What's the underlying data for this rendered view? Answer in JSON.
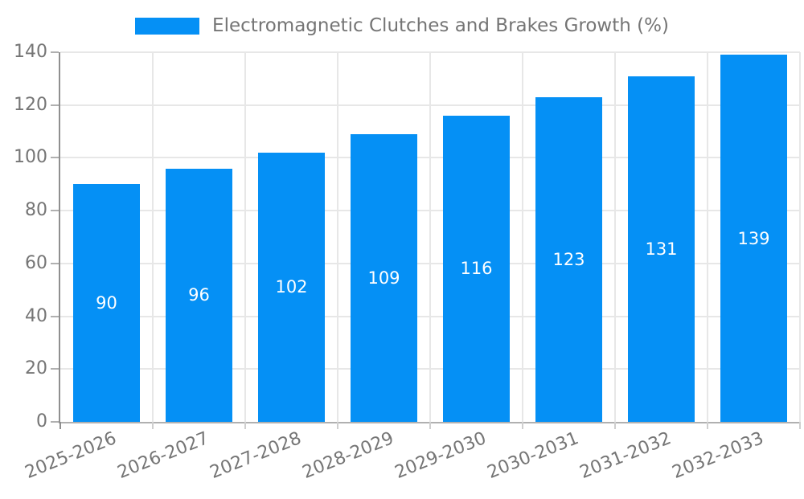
{
  "legend": {
    "label": "Electromagnetic Clutches and Brakes Growth (%)",
    "swatch_color": "#0590F5"
  },
  "chart_data": {
    "type": "bar",
    "title": "Electromagnetic Clutches and Brakes Growth (%)",
    "categories": [
      "2025-2026",
      "2026-2027",
      "2027-2028",
      "2028-2029",
      "2029-2030",
      "2030-2031",
      "2031-2032",
      "2032-2033"
    ],
    "values": [
      90,
      96,
      102,
      109,
      116,
      123,
      131,
      139
    ],
    "xlabel": "",
    "ylabel": "",
    "ylim": [
      0,
      140
    ],
    "yticks": [
      0,
      20,
      40,
      60,
      80,
      100,
      120,
      140
    ],
    "grid": true,
    "legend_position": "top-center",
    "bar_color": "#0590F5",
    "value_label_color": "#ffffff",
    "axis_text_color": "#757575"
  }
}
